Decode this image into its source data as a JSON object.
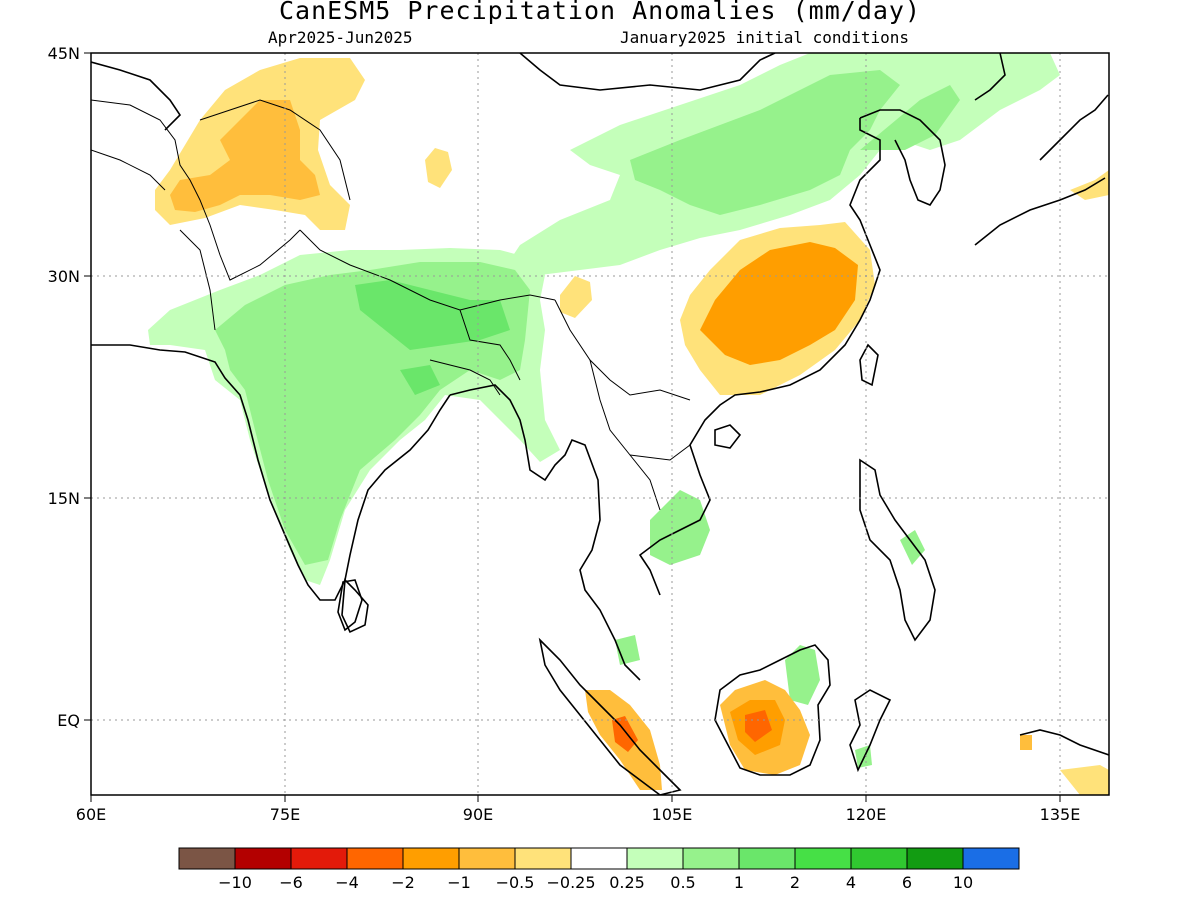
{
  "title": "CanESM5 Precipitation Anomalies (mm/day)",
  "subtitle_left": "Apr2025-Jun2025",
  "subtitle_right": "January2025 initial conditions",
  "lon_ticks": [
    "60E",
    "75E",
    "90E",
    "105E",
    "120E",
    "135E"
  ],
  "lat_ticks": [
    "45N",
    "30N",
    "15N",
    "EQ"
  ],
  "colorbar": {
    "colors": [
      "#7b5545",
      "#b30000",
      "#e31a0a",
      "#ff6600",
      "#ff9e00",
      "#ffbe3c",
      "#ffe27a",
      "#ffffff",
      "#c4ffba",
      "#96f28c",
      "#6ae66a",
      "#46e046",
      "#30c830",
      "#129c12",
      "#1a6ee6"
    ],
    "labels": [
      "-10",
      "-6",
      "-4",
      "-2",
      "-1",
      "-0.5",
      "-0.25",
      "0.25",
      "0.5",
      "1",
      "2",
      "4",
      "6",
      "10"
    ]
  }
}
